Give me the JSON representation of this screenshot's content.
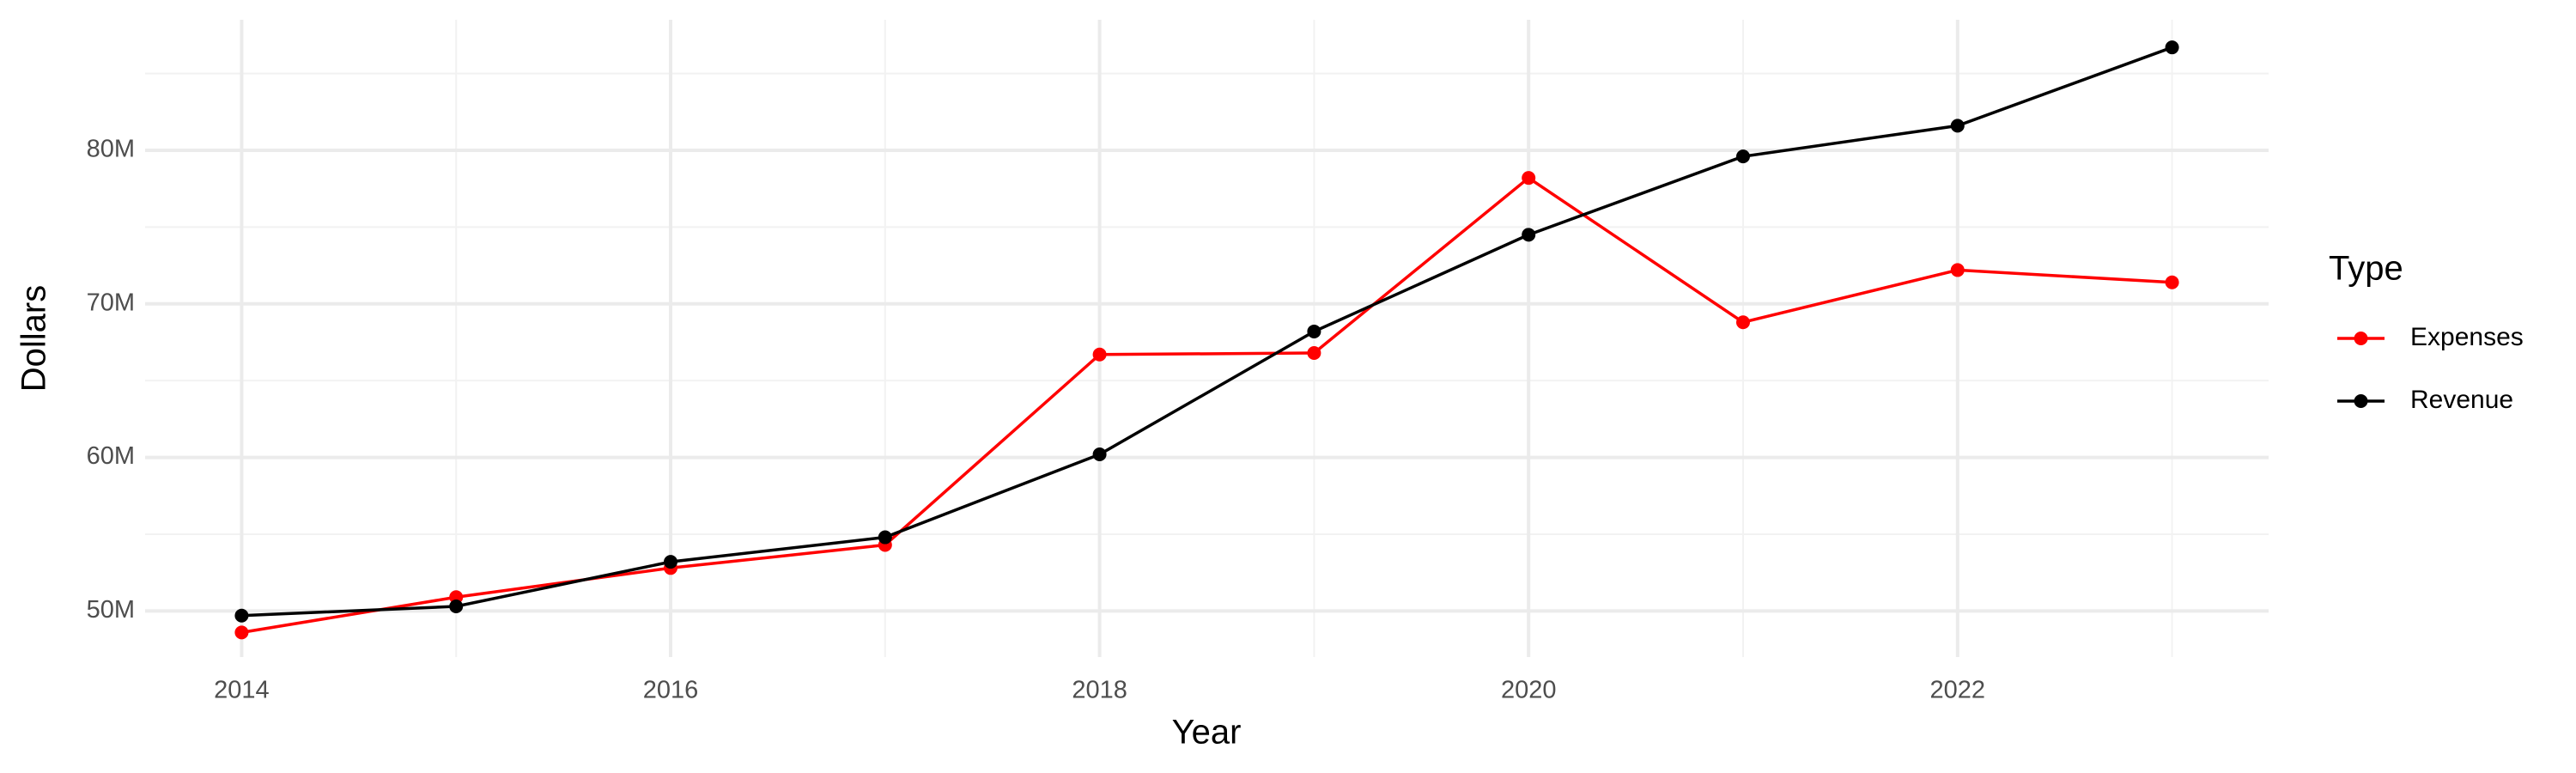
{
  "chart_data": {
    "type": "line",
    "x_label": "Year",
    "y_label": "Dollars",
    "legend_title": "Type",
    "legend_position": "right",
    "grid": true,
    "x": [
      2014,
      2015,
      2016,
      2017,
      2018,
      2019,
      2020,
      2021,
      2022,
      2023
    ],
    "xlim": [
      2013.55,
      2023.45
    ],
    "xticks": [
      2014,
      2016,
      2018,
      2020,
      2022
    ],
    "ylim": [
      47000000,
      88500000
    ],
    "yticks": [
      {
        "value": 50000000,
        "label": "50M"
      },
      {
        "value": 60000000,
        "label": "60M"
      },
      {
        "value": 70000000,
        "label": "70M"
      },
      {
        "value": 80000000,
        "label": "80M"
      }
    ],
    "series": [
      {
        "name": "Expenses",
        "color": "#ff0000",
        "values": [
          48600000,
          50900000,
          52800000,
          54300000,
          66700000,
          66800000,
          78200000,
          68800000,
          72200000,
          71400000
        ]
      },
      {
        "name": "Revenue",
        "color": "#000000",
        "values": [
          49700000,
          50300000,
          53200000,
          54800000,
          60200000,
          68200000,
          74500000,
          79600000,
          81600000,
          86700000
        ]
      }
    ]
  }
}
